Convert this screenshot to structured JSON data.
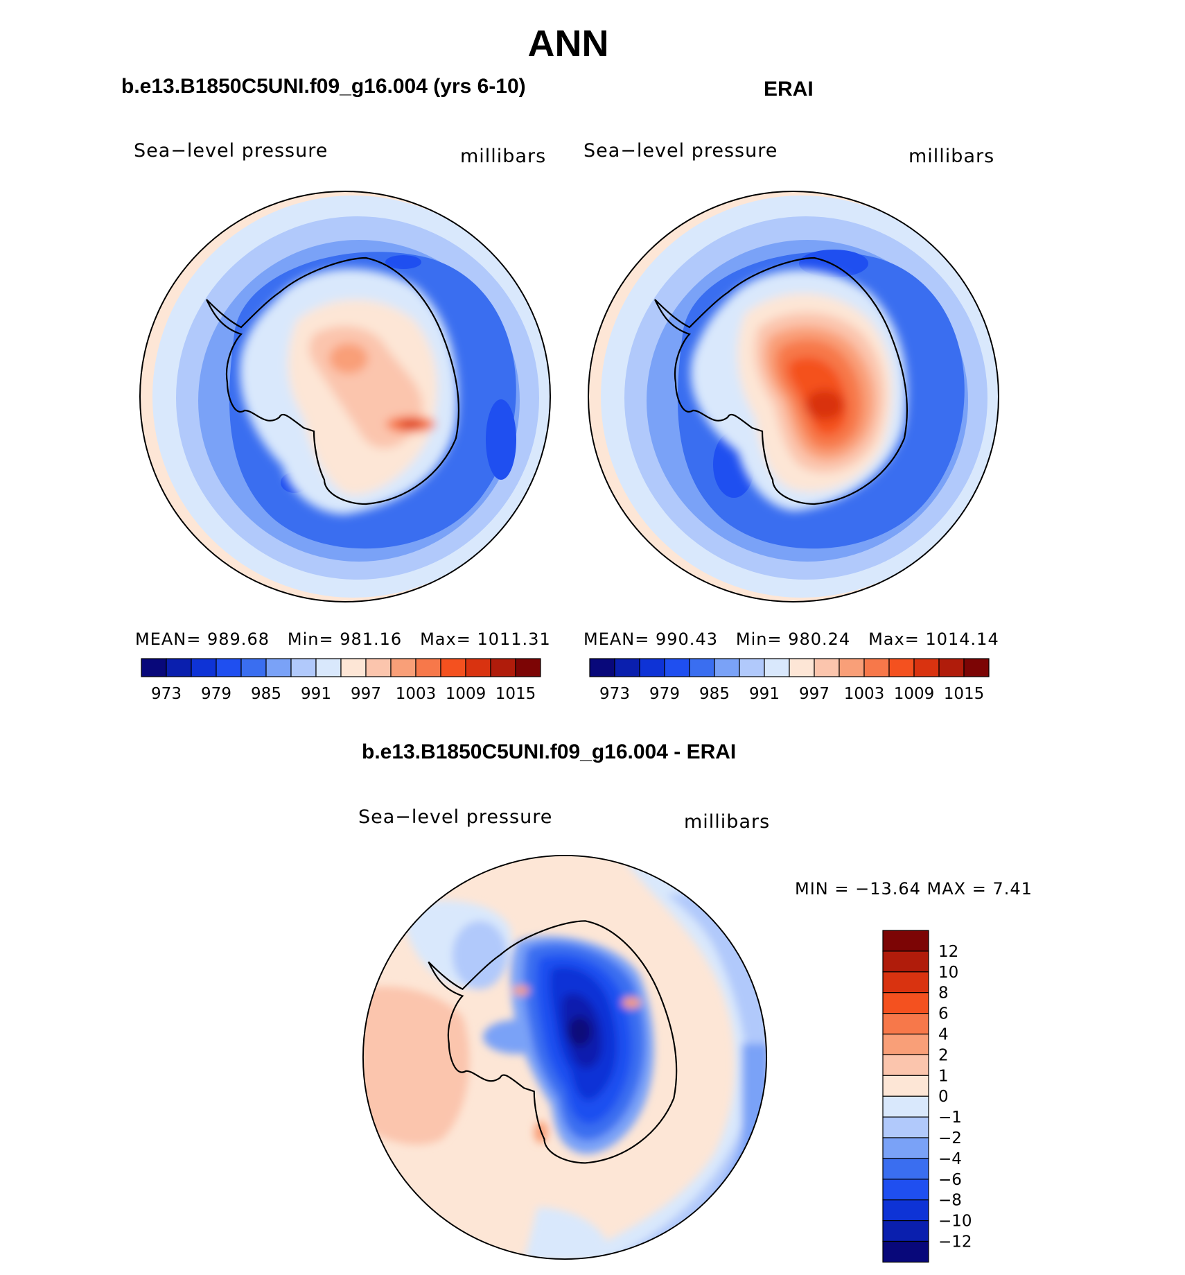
{
  "title": "ANN",
  "variable": "Sea−level pressure",
  "units": "millibars",
  "panels": [
    {
      "title": "b.e13.B1850C5UNI.f09_g16.004 (yrs 6-10)",
      "mean_label": "MEAN=",
      "mean": "989.68",
      "min_label": "Min=",
      "min": "981.16",
      "max_label": "Max=",
      "max": "1011.31"
    },
    {
      "title": "ERAI",
      "mean_label": "MEAN=",
      "mean": "990.43",
      "min_label": "Min=",
      "min": "980.24",
      "max_label": "Max=",
      "max": "1014.14"
    }
  ],
  "diff": {
    "title": "b.e13.B1850C5UNI.f09_g16.004 - ERAI",
    "minmax": "MIN = −13.64 MAX =    7.41"
  },
  "colorbar_main": {
    "colors": [
      "#08087a",
      "#0a1fae",
      "#0e33d6",
      "#1f4ff0",
      "#3a6ef0",
      "#7aa2f7",
      "#b1c9fb",
      "#d9e8fc",
      "#fde6d6",
      "#fbc5ad",
      "#f99f78",
      "#f7784a",
      "#f4511f",
      "#d93310",
      "#b01c0b",
      "#7c0505"
    ],
    "tick_labels": [
      "973",
      "979",
      "985",
      "991",
      "997",
      "1003",
      "1009",
      "1015"
    ]
  },
  "colorbar_diff": {
    "colors": [
      "#7c0505",
      "#b01c0b",
      "#d93310",
      "#f4511f",
      "#f7784a",
      "#f99f78",
      "#fbc5ad",
      "#fde6d6",
      "#d9e8fc",
      "#b1c9fb",
      "#7aa2f7",
      "#3a6ef0",
      "#1f4ff0",
      "#0e33d6",
      "#0a1fae",
      "#08087a"
    ],
    "tick_labels": [
      "12",
      "10",
      "8",
      "6",
      "4",
      "2",
      "1",
      "0",
      "−1",
      "−2",
      "−4",
      "−6",
      "−8",
      "−10",
      "−12"
    ]
  }
}
